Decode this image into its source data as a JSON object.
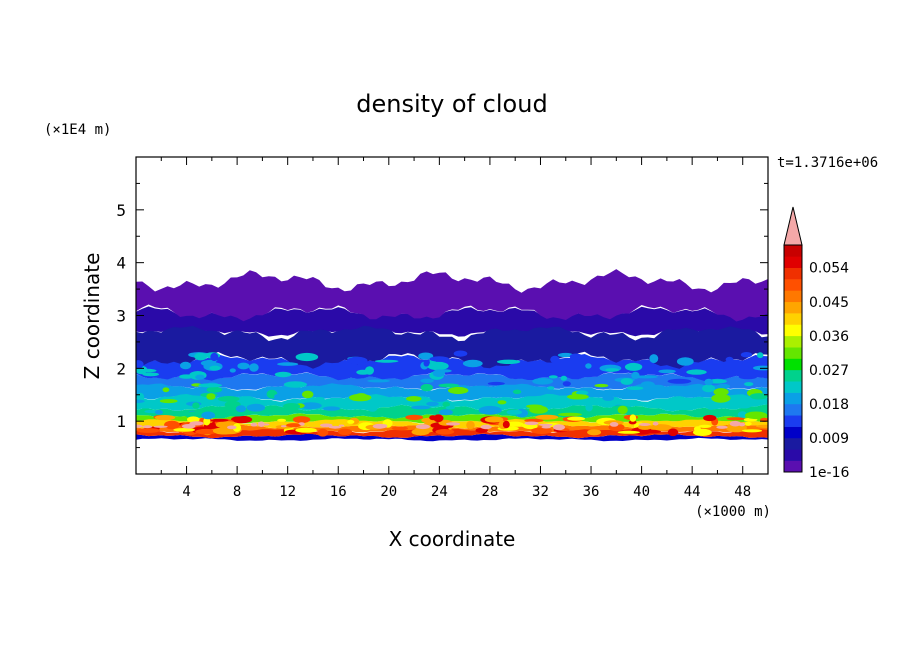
{
  "chart_data": {
    "type": "heatmap",
    "title": "density of cloud",
    "xlabel": "X coordinate",
    "ylabel": "Z coordinate",
    "x_unit": "(×1000 m)",
    "y_unit": "(×1E4 m)",
    "time_label": "t=1.3716e+06",
    "xlim": [
      0,
      50
    ],
    "ylim": [
      0,
      6
    ],
    "x_ticks": [
      "4",
      "8",
      "12",
      "16",
      "20",
      "24",
      "28",
      "32",
      "36",
      "40",
      "44",
      "48"
    ],
    "x_tick_values": [
      4,
      8,
      12,
      16,
      20,
      24,
      28,
      32,
      36,
      40,
      44,
      48
    ],
    "y_ticks": [
      "1",
      "2",
      "3",
      "4",
      "5"
    ],
    "y_tick_values": [
      1,
      2,
      3,
      4,
      5
    ],
    "colorbar_labels": [
      "1e-16",
      "0.009",
      "0.018",
      "0.027",
      "0.036",
      "0.045",
      "0.054"
    ],
    "colorbar_levels": [
      0,
      0.003,
      0.006,
      0.009,
      0.012,
      0.015,
      0.018,
      0.021,
      0.024,
      0.027,
      0.03,
      0.033,
      0.036,
      0.039,
      0.042,
      0.045,
      0.048,
      0.051,
      0.054,
      0.057,
      0.06
    ],
    "colorbar_colors": [
      "#5a0fb0",
      "#2a0aa8",
      "#1a1aa0",
      "#0000c8",
      "#1a3cf0",
      "#1e78f0",
      "#0aa0e6",
      "#00c8c8",
      "#00d28c",
      "#00e100",
      "#64e600",
      "#aaf000",
      "#ffff00",
      "#ffd200",
      "#ffa500",
      "#ff7800",
      "#ff5000",
      "#f03000",
      "#e00000",
      "#c80000"
    ],
    "colorbar_extend_color": "#f4a8a8",
    "cloud_layers": [
      {
        "z_bottom": 0.65,
        "z_top": 0.72,
        "level_index": 3
      },
      {
        "z_bottom": 0.72,
        "z_top": 0.82,
        "level_index": 17
      },
      {
        "z_bottom": 0.82,
        "z_top": 0.9,
        "level_index": 15
      },
      {
        "z_bottom": 0.9,
        "z_top": 1.0,
        "level_index": 13
      },
      {
        "z_bottom": 1.0,
        "z_top": 1.1,
        "level_index": 10
      },
      {
        "z_bottom": 1.1,
        "z_top": 1.25,
        "level_index": 8
      },
      {
        "z_bottom": 1.25,
        "z_top": 1.45,
        "level_index": 7
      },
      {
        "z_bottom": 1.45,
        "z_top": 1.65,
        "level_index": 6
      },
      {
        "z_bottom": 1.65,
        "z_top": 1.85,
        "level_index": 5
      },
      {
        "z_bottom": 1.85,
        "z_top": 2.15,
        "level_index": 4
      },
      {
        "z_bottom": 2.15,
        "z_top": 2.7,
        "level_index": 2
      },
      {
        "z_bottom": 2.7,
        "z_top": 3.05,
        "level_index": 1
      },
      {
        "z_bottom": 3.05,
        "z_top": 3.65,
        "level_index": 0
      }
    ]
  }
}
